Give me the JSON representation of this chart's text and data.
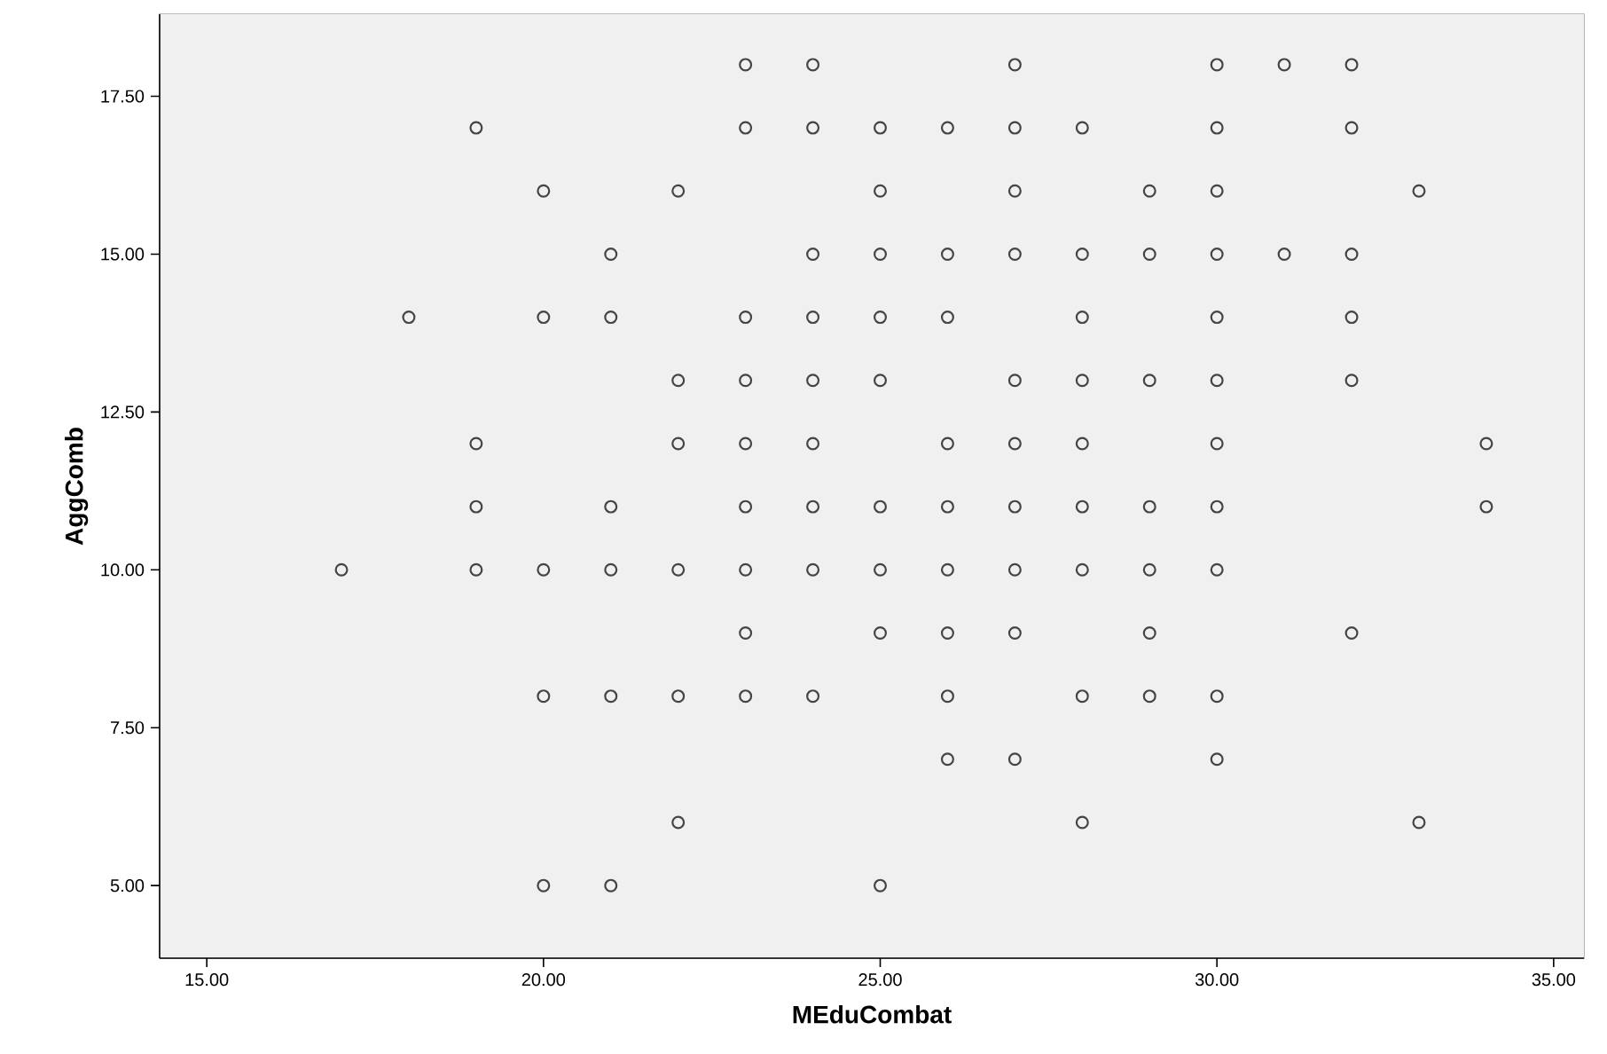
{
  "chart_data": {
    "type": "scatter",
    "xlabel": "MEduCombat",
    "ylabel": "AggComb",
    "xlim": [
      14.3,
      35.45
    ],
    "ylim": [
      3.85,
      18.8
    ],
    "xticks": [
      {
        "value": 15,
        "label": "15.00"
      },
      {
        "value": 20,
        "label": "20.00"
      },
      {
        "value": 25,
        "label": "25.00"
      },
      {
        "value": 30,
        "label": "30.00"
      },
      {
        "value": 35,
        "label": "35.00"
      }
    ],
    "yticks": [
      {
        "value": 5,
        "label": "5.00"
      },
      {
        "value": 7.5,
        "label": "7.50"
      },
      {
        "value": 10,
        "label": "10.00"
      },
      {
        "value": 12.5,
        "label": "12.50"
      },
      {
        "value": 15,
        "label": "15.00"
      },
      {
        "value": 17.5,
        "label": "17.50"
      }
    ],
    "grid": false,
    "marker": "circle",
    "series": [
      {
        "color": "#444444",
        "x": [
          23,
          24,
          27,
          30,
          31,
          32,
          19,
          23,
          24,
          25,
          26,
          27,
          28,
          30,
          32,
          20,
          22,
          25,
          27,
          29,
          30,
          33,
          21,
          24,
          25,
          26,
          27,
          28,
          29,
          30,
          31,
          32,
          18,
          20,
          21,
          23,
          24,
          25,
          26,
          28,
          30,
          32,
          22,
          23,
          24,
          25,
          27,
          28,
          29,
          30,
          32,
          19,
          22,
          23,
          24,
          26,
          27,
          28,
          30,
          34,
          19,
          21,
          23,
          24,
          25,
          26,
          27,
          28,
          29,
          30,
          34,
          17,
          19,
          20,
          21,
          22,
          23,
          24,
          25,
          26,
          27,
          28,
          29,
          30,
          23,
          25,
          26,
          27,
          29,
          32,
          20,
          21,
          22,
          23,
          24,
          26,
          28,
          29,
          30,
          26,
          27,
          30,
          22,
          28,
          33,
          20,
          21,
          25
        ],
        "values": [
          18,
          18,
          18,
          18,
          18,
          18,
          17,
          17,
          17,
          17,
          17,
          17,
          17,
          17,
          17,
          16,
          16,
          16,
          16,
          16,
          16,
          16,
          15,
          15,
          15,
          15,
          15,
          15,
          15,
          15,
          15,
          15,
          14,
          14,
          14,
          14,
          14,
          14,
          14,
          14,
          14,
          14,
          13,
          13,
          13,
          13,
          13,
          13,
          13,
          13,
          13,
          12,
          12,
          12,
          12,
          12,
          12,
          12,
          12,
          12,
          11,
          11,
          11,
          11,
          11,
          11,
          11,
          11,
          11,
          11,
          11,
          10,
          10,
          10,
          10,
          10,
          10,
          10,
          10,
          10,
          10,
          10,
          10,
          10,
          9,
          9,
          9,
          9,
          9,
          9,
          8,
          8,
          8,
          8,
          8,
          8,
          8,
          8,
          8,
          7,
          7,
          7,
          6,
          6,
          6,
          5,
          5,
          5
        ]
      }
    ]
  }
}
